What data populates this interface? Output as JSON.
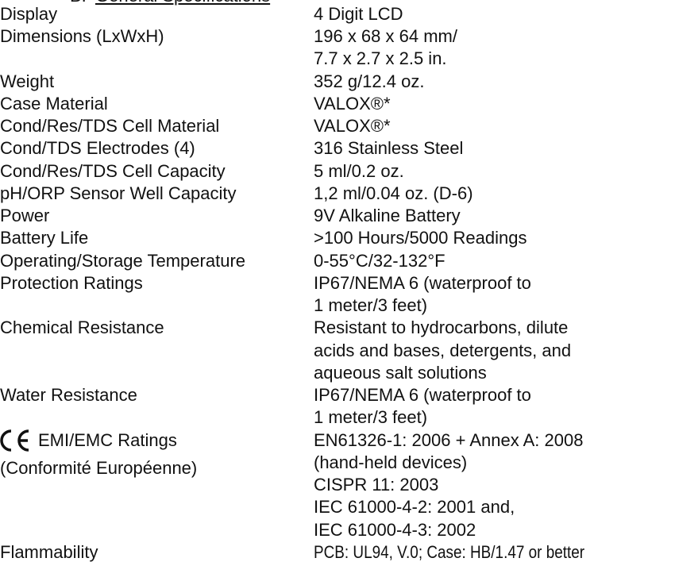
{
  "heading": {
    "number": "B.",
    "title": "General Specifications"
  },
  "rows": [
    {
      "label": "Display",
      "value": [
        "4 Digit LCD"
      ]
    },
    {
      "label": "Dimensions (LxWxH)",
      "value": [
        "196 x 68 x 64 mm/",
        "7.7 x 2.7 x 2.5 in."
      ]
    },
    {
      "label": "Weight",
      "value": [
        "352 g/12.4 oz."
      ]
    },
    {
      "label": "Case Material",
      "value": [
        "VALOX®*"
      ]
    },
    {
      "label": "Cond/Res/TDS Cell Material",
      "value": [
        "VALOX®*"
      ]
    },
    {
      "label": "Cond/TDS Electrodes (4)",
      "value": [
        "316 Stainless Steel"
      ]
    },
    {
      "label": "Cond/Res/TDS Cell Capacity",
      "value": [
        "5 ml/0.2 oz."
      ]
    },
    {
      "label": "pH/ORP Sensor Well Capacity",
      "value": [
        "1,2 ml/0.04 oz. (D-6)"
      ]
    },
    {
      "label": "Power",
      "value": [
        "9V Alkaline Battery"
      ]
    },
    {
      "label": "Battery Life",
      "value": [
        ">100 Hours/5000 Readings"
      ]
    },
    {
      "label": "Operating/Storage Temperature",
      "value": [
        "0-55°C/32-132°F"
      ]
    },
    {
      "label": "Protection Ratings",
      "value": [
        "IP67/NEMA 6 (waterproof to",
        "1 meter/3 feet)"
      ]
    },
    {
      "label": "Chemical Resistance",
      "value": [
        "Resistant to hydrocarbons, dilute",
        "acids and bases, detergents, and",
        "aqueous salt solutions"
      ]
    },
    {
      "label": "Water Resistance",
      "value": [
        "IP67/NEMA 6 (waterproof to",
        "1 meter/3 feet)"
      ]
    },
    {
      "label": "EMI/EMC Ratings",
      "label_note": "(Conformité Européenne)",
      "value": [
        "EN61326-1: 2006 + Annex A: 2008",
        "(hand-held devices)",
        "CISPR 11: 2003",
        "IEC 61000-4-2: 2001 and,",
        "IEC 61000-4-3: 2002"
      ]
    },
    {
      "label": "Flammability",
      "value": [
        "PCB: UL94, V.0; Case: HB/1.47 or better"
      ]
    }
  ]
}
